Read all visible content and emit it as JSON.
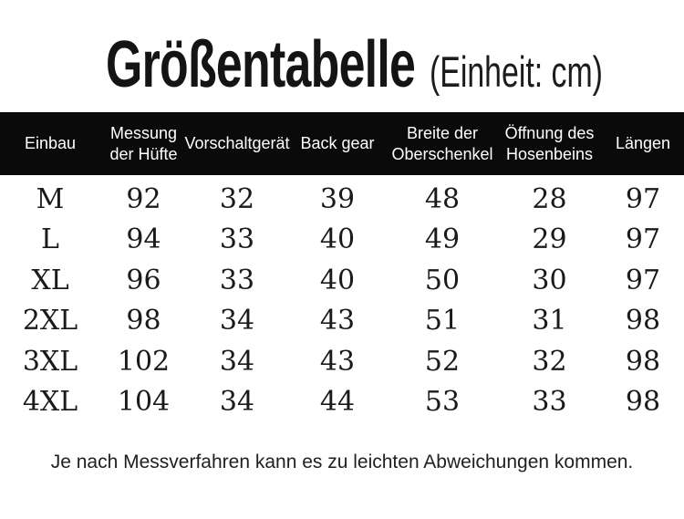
{
  "title": {
    "main": "Größentabelle",
    "unit": "(Einheit: cm)"
  },
  "table": {
    "columns": [
      "Einbau",
      "Messung\nder Hüfte",
      "Vorschaltgerät",
      "Back gear",
      "Breite der\nOberschenkel",
      "Öffnung des\nHosenbeins",
      "Längen"
    ],
    "rows": [
      {
        "size": "M",
        "values": [
          "92",
          "32",
          "39",
          "48",
          "28",
          "97"
        ]
      },
      {
        "size": "L",
        "values": [
          "94",
          "33",
          "40",
          "49",
          "29",
          "97"
        ]
      },
      {
        "size": "XL",
        "values": [
          "96",
          "33",
          "40",
          "50",
          "30",
          "97"
        ]
      },
      {
        "size": "2XL",
        "values": [
          "98",
          "34",
          "43",
          "51",
          "31",
          "98"
        ]
      },
      {
        "size": "3XL",
        "values": [
          "102",
          "34",
          "43",
          "52",
          "32",
          "98"
        ]
      },
      {
        "size": "4XL",
        "values": [
          "104",
          "34",
          "44",
          "53",
          "33",
          "98"
        ]
      }
    ]
  },
  "footer": {
    "note": "Je nach Messverfahren kann es zu leichten Abweichungen kommen."
  },
  "colors": {
    "header_bg": "#0a0a0a",
    "header_text": "#ffffff",
    "body_text": "#1a1a1a",
    "page_bg": "#ffffff"
  }
}
